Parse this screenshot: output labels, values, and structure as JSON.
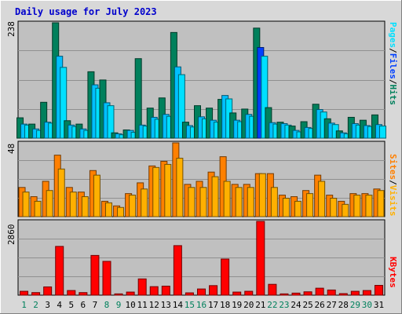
{
  "chart_data": {
    "type": "bar",
    "title": "Daily usage for July 2023",
    "categories": [
      "1",
      "2",
      "3",
      "4",
      "5",
      "6",
      "7",
      "8",
      "9",
      "10",
      "11",
      "12",
      "13",
      "14",
      "15",
      "16",
      "17",
      "18",
      "19",
      "20",
      "21",
      "22",
      "23",
      "24",
      "25",
      "26",
      "27",
      "28",
      "29",
      "30",
      "31"
    ],
    "weekend_days": [
      "1",
      "2",
      "8",
      "9",
      "15",
      "16",
      "22",
      "23",
      "29",
      "30"
    ],
    "colors": {
      "hits": "#00805c",
      "files": "#00c0ff",
      "pages": "#00e0ff",
      "visits": "#ff8000",
      "sites": "#ffb000",
      "kbytes": "#ff0000",
      "highlight": "#0040ff",
      "weekday_label": "#000000",
      "weekend_label": "#00805c",
      "title": "#0000cc",
      "plot_bg": "#c0c0c0",
      "page_bg": "#d8d8d8"
    },
    "panels": [
      {
        "id": "top",
        "ymax_label": "238",
        "ylim": [
          0,
          238
        ],
        "right_label": [
          {
            "text": "Hits",
            "color": "#00805c"
          },
          {
            "text": "/",
            "color": "#000000"
          },
          {
            "text": "Files",
            "color": "#0040ff"
          },
          {
            "text": "/",
            "color": "#000000"
          },
          {
            "text": "Pages",
            "color": "#00e0ff"
          }
        ],
        "series": [
          {
            "name": "Hits",
            "color": "#00805c",
            "values": [
              42,
              29,
              74,
              238,
              36,
              29,
              137,
              120,
              11,
              17,
              164,
              62,
              83,
              218,
              33,
              67,
              62,
              80,
              52,
              60,
              227,
              63,
              33,
              25,
              34,
              70,
              40,
              15,
              43,
              37,
              48
            ]
          },
          {
            "name": "Files",
            "color": "#00c0ff",
            "values": [
              29,
              19,
              33,
              169,
              27,
              19,
              110,
              73,
              9,
              16,
              27,
              43,
              49,
              147,
              26,
              44,
              37,
              88,
              37,
              49,
              187,
              32,
              30,
              16,
              22,
              59,
              31,
              11,
              30,
              26,
              28
            ]
          },
          {
            "name": "Pages",
            "color": "#00e0ff",
            "values": [
              27,
              16,
              31,
              146,
              24,
              16,
              103,
              67,
              7,
              12,
              25,
              39,
              45,
              131,
              23,
              40,
              33,
              81,
              34,
              45,
              169,
              29,
              27,
              13,
              20,
              54,
              28,
              9,
              27,
              24,
              25
            ]
          }
        ],
        "highlight_category": "21"
      },
      {
        "id": "middle",
        "ymax_label": "48",
        "ylim": [
          0,
          48
        ],
        "right_label": [
          {
            "text": "Visits",
            "color": "#ffb000"
          },
          {
            "text": "/",
            "color": "#000000"
          },
          {
            "text": "Sites",
            "color": "#ff8000"
          }
        ],
        "series": [
          {
            "name": "Visits",
            "color": "#ff8000",
            "values": [
              19,
              13,
              23,
              40,
              19,
              16,
              30,
              10,
              7,
              15,
              22,
              33,
              36,
              48,
              21,
              23,
              29,
              39,
              21,
              21,
              28,
              28,
              14,
              13,
              17,
              27,
              14,
              10,
              15,
              15,
              18
            ]
          },
          {
            "name": "Sites",
            "color": "#ffb000",
            "values": [
              16,
              10,
              17,
              31,
              16,
              13,
              27,
              9,
              6,
              14,
              18,
              32,
              34,
              38,
              19,
              19,
              26,
              23,
              19,
              19,
              28,
              19,
              12,
              10,
              15,
              23,
              12,
              8,
              14,
              14,
              17
            ]
          }
        ]
      },
      {
        "id": "bottom",
        "ymax_label": "2860",
        "ylim": [
          0,
          2860
        ],
        "right_label": [
          {
            "text": "KBytes",
            "color": "#ff0000"
          }
        ],
        "series": [
          {
            "name": "KBytes",
            "color": "#ff0000",
            "values": [
              150,
              100,
              320,
              1890,
              180,
              100,
              1540,
              1310,
              50,
              120,
              630,
              330,
              350,
              1920,
              90,
              240,
              370,
              1400,
              120,
              150,
              2860,
              420,
              50,
              80,
              130,
              270,
              200,
              60,
              150,
              180,
              380
            ]
          }
        ]
      }
    ]
  }
}
